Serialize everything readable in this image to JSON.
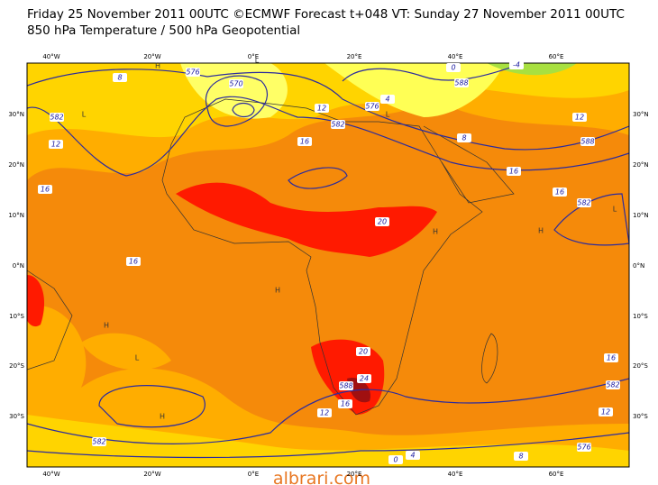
{
  "header": {
    "title": "Friday 25 November 2011 00UTC ©ECMWF Forecast t+048 VT: Sunday 27 November 2011 00UTC",
    "subtitle": "850 hPa Temperature / 500 hPa Geopotential"
  },
  "map": {
    "longitude_labels": [
      "40°W",
      "20°W",
      "0°E",
      "20°E",
      "40°E",
      "60°E"
    ],
    "latitude_labels": [
      "30°N",
      "20°N",
      "10°N",
      "0°N",
      "10°S",
      "20°S",
      "30°S"
    ],
    "contour_labels": [
      "576",
      "570",
      "8",
      "582",
      "12",
      "12",
      "16",
      "576",
      "4",
      "582",
      "588",
      "0",
      "-4",
      "8",
      "12",
      "588",
      "16",
      "16",
      "582",
      "16",
      "20",
      "16",
      "20",
      "24",
      "588",
      "16",
      "12",
      "16",
      "582",
      "12",
      "582",
      "8",
      "4",
      "0",
      "576"
    ],
    "pressure_markers": [
      "H",
      "L",
      "L",
      "L",
      "H",
      "H",
      "H",
      "H",
      "L",
      "H",
      "L"
    ]
  },
  "watermark": "albrari.com"
}
